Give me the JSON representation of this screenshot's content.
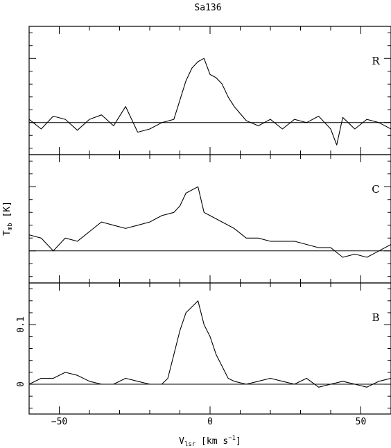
{
  "title": "Sa136",
  "chart_data": {
    "type": "line",
    "title": "Sa136",
    "xlabel_main": "V",
    "xlabel_sub": "lsr",
    "xlabel_rest": " [km s",
    "xlabel_sup": "−1",
    "xlabel_close": "]",
    "ylabel_main": "T",
    "ylabel_sub": "mb",
    "ylabel_rest": " [K]",
    "xlim": [
      -60,
      60
    ],
    "x_ticks": [
      "−50",
      "0",
      "50"
    ],
    "x_tick_values": [
      -50,
      0,
      50
    ],
    "shared_x_axis": true,
    "panels": [
      {
        "label": "R",
        "ylim": [
          -0.05,
          0.15
        ],
        "baseline": 0,
        "y_tick_labels_shown": false,
        "series": {
          "x": [
            -60,
            -56,
            -52,
            -48,
            -44,
            -40,
            -36,
            -32,
            -28,
            -24,
            -20,
            -16,
            -12,
            -8,
            -6,
            -4,
            -2,
            0,
            2,
            4,
            6,
            8,
            12,
            16,
            20,
            24,
            28,
            32,
            36,
            40,
            42,
            44,
            48,
            52,
            56,
            60
          ],
          "y": [
            0.005,
            -0.01,
            0.01,
            0.005,
            -0.012,
            0.005,
            0.012,
            -0.005,
            0.025,
            -0.015,
            -0.01,
            0.0,
            0.005,
            0.065,
            0.085,
            0.095,
            0.1,
            0.075,
            0.07,
            0.06,
            0.04,
            0.025,
            0.003,
            -0.005,
            0.005,
            -0.01,
            0.005,
            0.0,
            0.01,
            -0.01,
            -0.035,
            0.008,
            -0.01,
            0.005,
            0.0,
            -0.01
          ]
        }
      },
      {
        "label": "C",
        "ylim": [
          -0.05,
          0.15
        ],
        "baseline": 0,
        "y_tick_labels_shown": false,
        "series": {
          "x": [
            -60,
            -56,
            -52,
            -48,
            -44,
            -40,
            -36,
            -32,
            -28,
            -24,
            -20,
            -16,
            -12,
            -10,
            -8,
            -6,
            -4,
            -2,
            0,
            2,
            4,
            8,
            12,
            16,
            20,
            24,
            28,
            32,
            36,
            40,
            44,
            48,
            52,
            56,
            60
          ],
          "y": [
            0.025,
            0.02,
            0.0,
            0.02,
            0.015,
            0.03,
            0.045,
            0.04,
            0.035,
            0.04,
            0.045,
            0.055,
            0.06,
            0.07,
            0.09,
            0.095,
            0.1,
            0.06,
            0.055,
            0.05,
            0.045,
            0.035,
            0.02,
            0.02,
            0.015,
            0.015,
            0.015,
            0.01,
            0.005,
            0.005,
            -0.01,
            -0.005,
            -0.01,
            0.0,
            0.01
          ]
        }
      },
      {
        "label": "B",
        "ylim": [
          -0.05,
          0.17
        ],
        "baseline": 0,
        "y_ticks": [
          "0",
          "0.1"
        ],
        "y_tick_values": [
          0,
          0.1
        ],
        "series": {
          "x": [
            -60,
            -56,
            -52,
            -48,
            -44,
            -40,
            -36,
            -32,
            -28,
            -24,
            -20,
            -16,
            -14,
            -12,
            -10,
            -8,
            -6,
            -4,
            -2,
            0,
            2,
            4,
            6,
            8,
            12,
            16,
            20,
            24,
            28,
            32,
            36,
            40,
            44,
            48,
            52,
            56,
            60
          ],
          "y": [
            0.0,
            0.01,
            0.01,
            0.02,
            0.015,
            0.005,
            0.0,
            0.0,
            0.01,
            0.005,
            0.0,
            0.0,
            0.01,
            0.05,
            0.09,
            0.12,
            0.13,
            0.14,
            0.1,
            0.08,
            0.05,
            0.03,
            0.01,
            0.005,
            0.0,
            0.005,
            0.01,
            0.005,
            0.0,
            0.01,
            -0.005,
            0.0,
            0.005,
            0.0,
            -0.005,
            0.005,
            0.01
          ]
        }
      }
    ]
  }
}
